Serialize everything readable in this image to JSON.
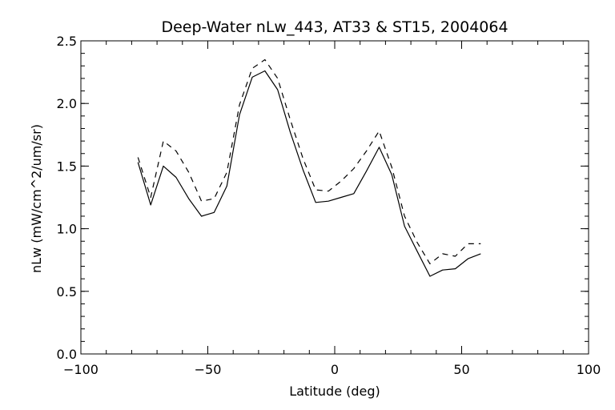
{
  "chart_data": {
    "type": "line",
    "title": "Deep-Water nLw_443, AT33 & ST15, 2004064",
    "xlabel": "Latitude (deg)",
    "ylabel": "nLw (mW/cm^2/um/sr)",
    "xlim": [
      -100,
      100
    ],
    "ylim": [
      0.0,
      2.5
    ],
    "x_ticks": [
      -100,
      -50,
      0,
      50,
      100
    ],
    "y_ticks": [
      0.0,
      0.5,
      1.0,
      1.5,
      2.0,
      2.5
    ],
    "x_tick_labels": [
      "−100",
      "−50",
      "0",
      "50",
      "100"
    ],
    "y_tick_labels": [
      "0.0",
      "0.5",
      "1.0",
      "1.5",
      "2.0",
      "2.5"
    ],
    "grid": false,
    "series": [
      {
        "style": "solid",
        "color": "#000000",
        "x": [
          -77.5,
          -72.5,
          -67.5,
          -62.5,
          -57.5,
          -52.5,
          -47.5,
          -42.5,
          -37.5,
          -32.5,
          -27.5,
          -22.5,
          -17.5,
          -12.5,
          -7.5,
          -2.5,
          2.5,
          7.5,
          12.5,
          17.5,
          22.5,
          27.5,
          32.5,
          37.5,
          42.5,
          47.5,
          52.5,
          57.5
        ],
        "y": [
          1.53,
          1.19,
          1.5,
          1.41,
          1.24,
          1.1,
          1.13,
          1.34,
          1.91,
          2.21,
          2.26,
          2.11,
          1.77,
          1.47,
          1.21,
          1.22,
          1.25,
          1.28,
          1.46,
          1.65,
          1.43,
          1.02,
          0.82,
          0.62,
          0.67,
          0.68,
          0.76,
          0.8
        ]
      },
      {
        "style": "dashed",
        "color": "#000000",
        "x": [
          -77.5,
          -72.5,
          -67.5,
          -62.5,
          -57.5,
          -52.5,
          -47.5,
          -42.5,
          -37.5,
          -32.5,
          -27.5,
          -22.5,
          -17.5,
          -12.5,
          -7.5,
          -2.5,
          2.5,
          7.5,
          12.5,
          17.5,
          22.5,
          27.5,
          32.5,
          37.5,
          42.5,
          47.5,
          52.5,
          57.5
        ],
        "y": [
          1.57,
          1.25,
          1.7,
          1.62,
          1.45,
          1.22,
          1.24,
          1.45,
          1.99,
          2.28,
          2.35,
          2.2,
          1.87,
          1.56,
          1.31,
          1.3,
          1.38,
          1.48,
          1.62,
          1.78,
          1.49,
          1.1,
          0.89,
          0.72,
          0.8,
          0.78,
          0.88,
          0.88
        ]
      }
    ]
  }
}
